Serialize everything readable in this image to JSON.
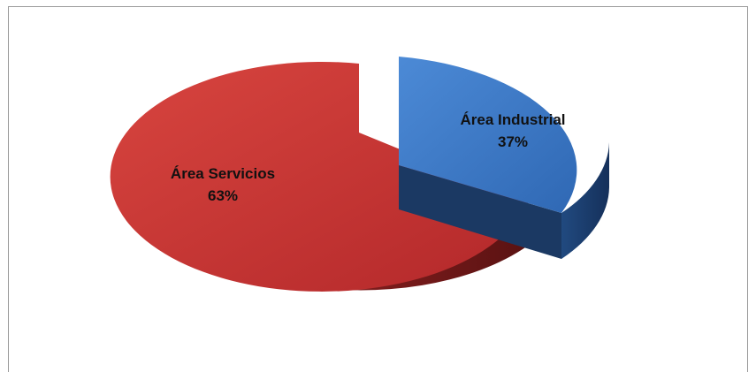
{
  "chart_data": {
    "type": "pie",
    "title": "",
    "style": "3d-exploded",
    "legend": "none",
    "slices": [
      {
        "label": "Área Industrial",
        "value": 37,
        "percent_label": "37%",
        "color": "#3f7bc8",
        "side_color": "#1e3f70"
      },
      {
        "label": "Área Servicios",
        "value": 63,
        "percent_label": "63%",
        "color": "#c8322e",
        "side_color": "#7a1c1a"
      }
    ]
  }
}
